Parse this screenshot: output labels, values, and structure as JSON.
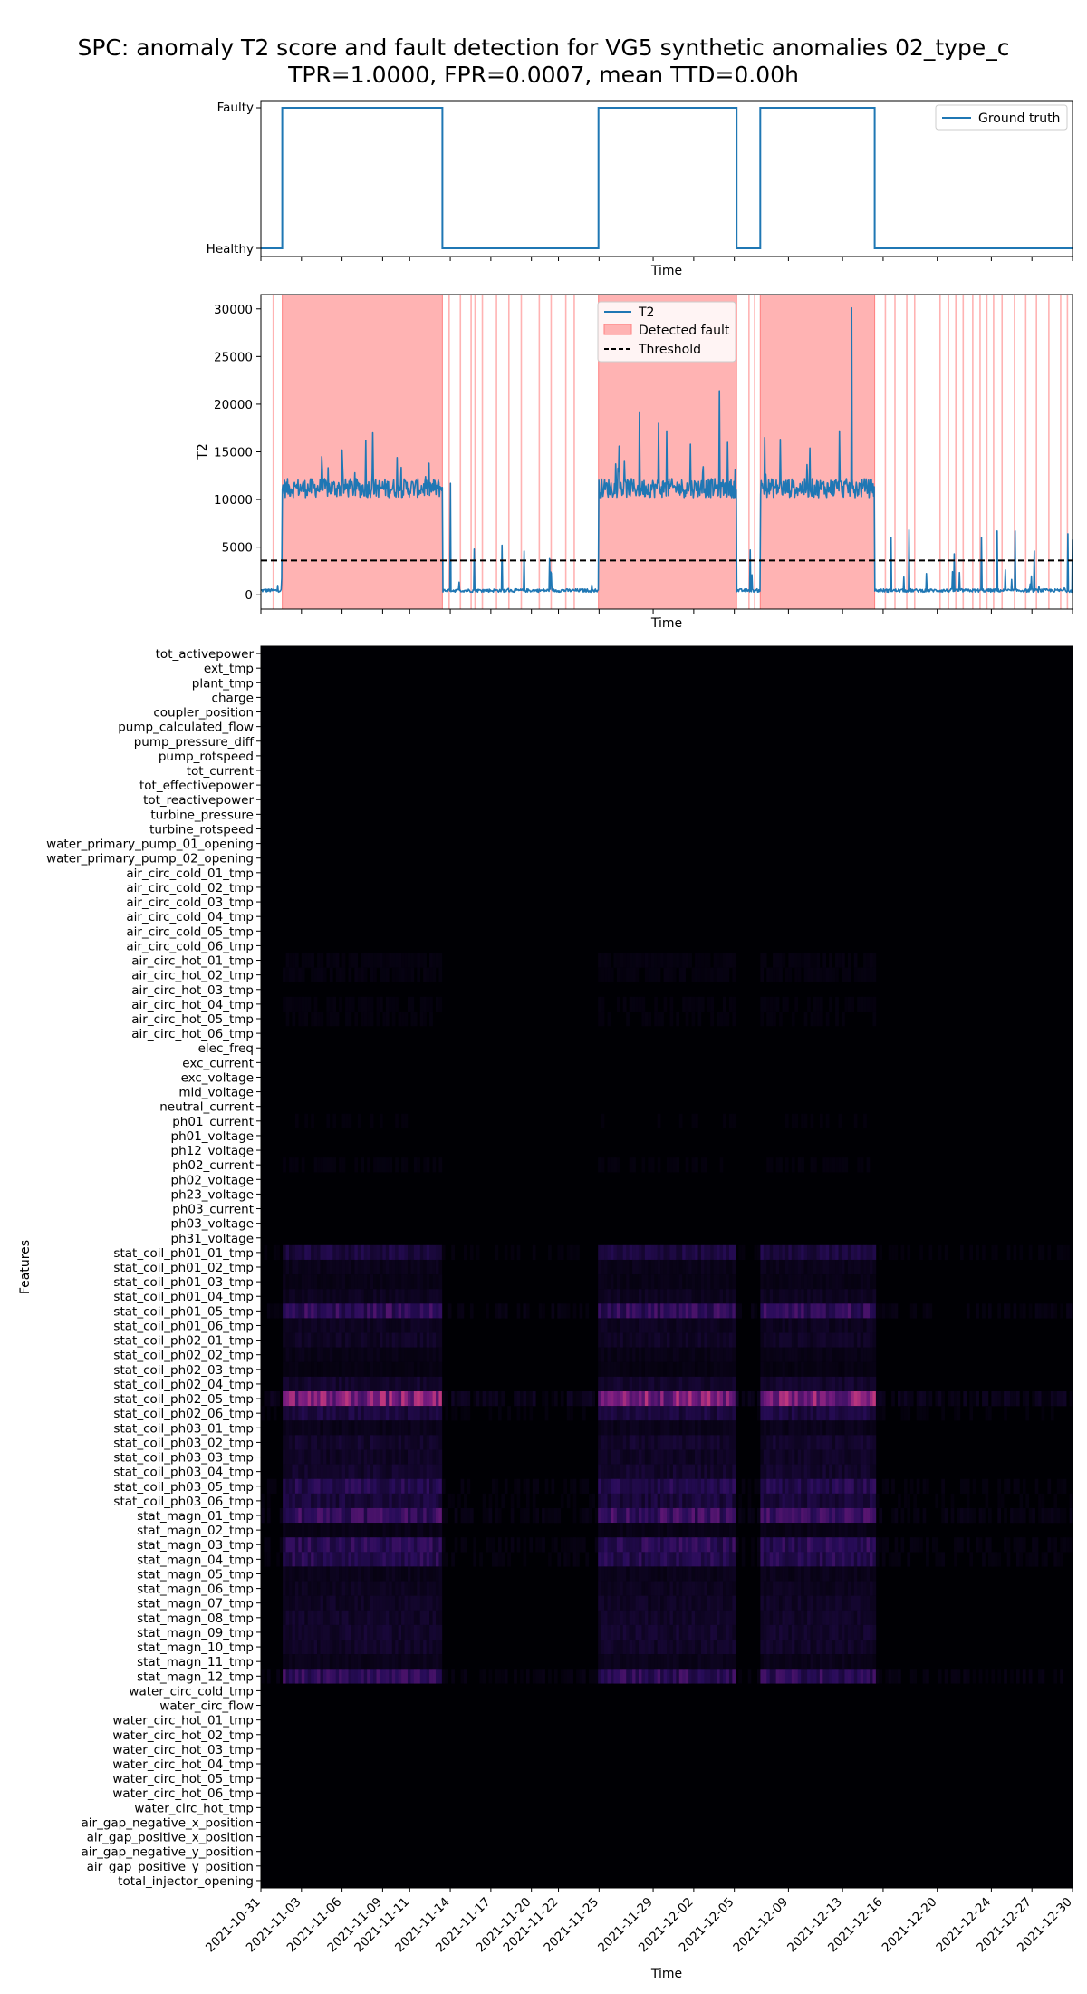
{
  "figure": {
    "title_line1": "SPC: anomaly T2 score and fault detection for VG5 synthetic anomalies 02_type_c",
    "title_line2": "TPR=1.0000, FPR=0.0007, mean TTD=0.00h"
  },
  "colors": {
    "series": "#1f77b4",
    "detected_fill": "#ffb3b3",
    "detected_edge": "#ff8080",
    "threshold": "#000000",
    "heatmap_base": "#000004",
    "heatmap_mid": "#3b0f70",
    "heatmap_high": "#b73779"
  },
  "chart_data": [
    {
      "type": "line",
      "xlabel": "Time",
      "ylabel": "",
      "xlim": [
        "2021-10-31",
        "2021-12-30"
      ],
      "yticks": [
        "Healthy",
        "Faulty"
      ],
      "legend": {
        "location": "top-right",
        "entries": [
          "Ground truth"
        ]
      },
      "series": [
        {
          "name": "Ground truth",
          "points": [
            [
              "2021-10-31",
              "Healthy"
            ],
            [
              "2021-11-01 14:00",
              "Healthy"
            ],
            [
              "2021-11-01 14:00",
              "Faulty"
            ],
            [
              "2021-11-13 10:00",
              "Faulty"
            ],
            [
              "2021-11-13 10:00",
              "Healthy"
            ],
            [
              "2021-11-24 23:00",
              "Healthy"
            ],
            [
              "2021-11-24 23:00",
              "Faulty"
            ],
            [
              "2021-12-05 04:00",
              "Faulty"
            ],
            [
              "2021-12-05 04:00",
              "Healthy"
            ],
            [
              "2021-12-06 22:00",
              "Healthy"
            ],
            [
              "2021-12-06 22:00",
              "Faulty"
            ],
            [
              "2021-12-15 09:00",
              "Faulty"
            ],
            [
              "2021-12-15 09:00",
              "Healthy"
            ],
            [
              "2021-12-30",
              "Healthy"
            ]
          ]
        }
      ]
    },
    {
      "type": "line",
      "xlabel": "Time",
      "ylabel": "T2",
      "xlim": [
        "2021-10-31",
        "2021-12-30"
      ],
      "ylim": [
        -1500,
        31500
      ],
      "yticks": [
        0,
        5000,
        10000,
        15000,
        20000,
        25000,
        30000
      ],
      "legend": {
        "location": "top-center",
        "entries": [
          "T2",
          "Detected fault",
          "Threshold"
        ]
      },
      "threshold": 3600,
      "fault_regions": [
        [
          "2021-11-01 14:00",
          "2021-11-13 10:00"
        ],
        [
          "2021-11-24 23:00",
          "2021-12-05 04:00"
        ],
        [
          "2021-12-06 22:00",
          "2021-12-15 09:00"
        ]
      ],
      "isolated_detections": [
        "2021-10-31 22:00",
        "2021-11-13 22:00",
        "2021-11-14 18:00",
        "2021-11-15 13:00",
        "2021-11-15 20:00",
        "2021-11-16 09:00",
        "2021-11-17 10:00",
        "2021-11-18 08:00",
        "2021-11-19 06:00",
        "2021-11-20 14:00",
        "2021-11-21 11:00",
        "2021-11-22 13:00",
        "2021-11-23 04:00",
        "2021-12-06 02:00",
        "2021-12-06 12:00",
        "2021-12-16 04:00",
        "2021-12-16 21:00",
        "2021-12-17 18:00",
        "2021-12-18 08:00",
        "2021-12-20 05:00",
        "2021-12-20 20:00",
        "2021-12-21 09:00",
        "2021-12-21 22:00",
        "2021-12-22 15:00",
        "2021-12-23 04:00",
        "2021-12-23 16:00",
        "2021-12-24 04:00",
        "2021-12-24 19:00",
        "2021-12-25 17:00",
        "2021-12-26 13:00",
        "2021-12-27 08:00",
        "2021-12-28 06:00",
        "2021-12-29 03:00",
        "2021-12-29 15:00"
      ],
      "series": [
        {
          "name": "T2",
          "baseline_level": 450,
          "fault_level": 11200,
          "fault_band": 2000,
          "spikes": [
            [
              "2021-11-04 12:00",
              14500
            ],
            [
              "2021-11-06 00:00",
              15200
            ],
            [
              "2021-11-07 18:00",
              16200
            ],
            [
              "2021-11-08 06:00",
              17000
            ],
            [
              "2021-11-10 02:00",
              14400
            ],
            [
              "2021-11-12 10:00",
              13800
            ],
            [
              "2021-11-14 00:00",
              11700
            ],
            [
              "2021-11-15 19:00",
              4800
            ],
            [
              "2021-11-17 20:00",
              5200
            ],
            [
              "2021-11-19 11:00",
              4600
            ],
            [
              "2021-11-21 08:00",
              3800
            ],
            [
              "2021-11-26 12:00",
              15600
            ],
            [
              "2021-11-28 00:00",
              19100
            ],
            [
              "2021-11-29 10:00",
              18000
            ],
            [
              "2021-11-30 00:00",
              17200
            ],
            [
              "2021-12-01 18:00",
              15800
            ],
            [
              "2021-12-03 22:00",
              21400
            ],
            [
              "2021-12-04 12:00",
              16000
            ],
            [
              "2021-12-06 04:00",
              4700
            ],
            [
              "2021-12-07 06:00",
              16500
            ],
            [
              "2021-12-08 10:00",
              16300
            ],
            [
              "2021-12-10 14:00",
              15400
            ],
            [
              "2021-12-12 18:00",
              17200
            ],
            [
              "2021-12-13 16:00",
              30100
            ],
            [
              "2021-12-16 14:00",
              6000
            ],
            [
              "2021-12-17 22:00",
              6800
            ],
            [
              "2021-12-21 06:00",
              4300
            ],
            [
              "2021-12-23 06:00",
              6000
            ],
            [
              "2021-12-24 10:00",
              6700
            ],
            [
              "2021-12-25 18:00",
              6700
            ],
            [
              "2021-12-27 04:00",
              4600
            ],
            [
              "2021-12-29 16:00",
              6400
            ],
            [
              "2021-12-30 00:00",
              5800
            ]
          ]
        }
      ]
    },
    {
      "type": "heatmap",
      "xlabel": "Time",
      "ylabel": "Features",
      "xlim": [
        "2021-10-31",
        "2021-12-30"
      ],
      "xticks": [
        "2021-10-31",
        "2021-11-03",
        "2021-11-06",
        "2021-11-09",
        "2021-11-11",
        "2021-11-14",
        "2021-11-17",
        "2021-11-20",
        "2021-11-22",
        "2021-11-25",
        "2021-11-29",
        "2021-12-02",
        "2021-12-05",
        "2021-12-09",
        "2021-12-13",
        "2021-12-16",
        "2021-12-20",
        "2021-12-24",
        "2021-12-27",
        "2021-12-30"
      ],
      "rows": [
        "tot_activepower",
        "ext_tmp",
        "plant_tmp",
        "charge",
        "coupler_position",
        "pump_calculated_flow",
        "pump_pressure_diff",
        "pump_rotspeed",
        "tot_current",
        "tot_effectivepower",
        "tot_reactivepower",
        "turbine_pressure",
        "turbine_rotspeed",
        "water_primary_pump_01_opening",
        "water_primary_pump_02_opening",
        "air_circ_cold_01_tmp",
        "air_circ_cold_02_tmp",
        "air_circ_cold_03_tmp",
        "air_circ_cold_04_tmp",
        "air_circ_cold_05_tmp",
        "air_circ_cold_06_tmp",
        "air_circ_hot_01_tmp",
        "air_circ_hot_02_tmp",
        "air_circ_hot_03_tmp",
        "air_circ_hot_04_tmp",
        "air_circ_hot_05_tmp",
        "air_circ_hot_06_tmp",
        "elec_freq",
        "exc_current",
        "exc_voltage",
        "mid_voltage",
        "neutral_current",
        "ph01_current",
        "ph01_voltage",
        "ph12_voltage",
        "ph02_current",
        "ph02_voltage",
        "ph23_voltage",
        "ph03_current",
        "ph03_voltage",
        "ph31_voltage",
        "stat_coil_ph01_01_tmp",
        "stat_coil_ph01_02_tmp",
        "stat_coil_ph01_03_tmp",
        "stat_coil_ph01_04_tmp",
        "stat_coil_ph01_05_tmp",
        "stat_coil_ph01_06_tmp",
        "stat_coil_ph02_01_tmp",
        "stat_coil_ph02_02_tmp",
        "stat_coil_ph02_03_tmp",
        "stat_coil_ph02_04_tmp",
        "stat_coil_ph02_05_tmp",
        "stat_coil_ph02_06_tmp",
        "stat_coil_ph03_01_tmp",
        "stat_coil_ph03_02_tmp",
        "stat_coil_ph03_03_tmp",
        "stat_coil_ph03_04_tmp",
        "stat_coil_ph03_05_tmp",
        "stat_coil_ph03_06_tmp",
        "stat_magn_01_tmp",
        "stat_magn_02_tmp",
        "stat_magn_03_tmp",
        "stat_magn_04_tmp",
        "stat_magn_05_tmp",
        "stat_magn_06_tmp",
        "stat_magn_07_tmp",
        "stat_magn_08_tmp",
        "stat_magn_09_tmp",
        "stat_magn_10_tmp",
        "stat_magn_11_tmp",
        "stat_magn_12_tmp",
        "water_circ_cold_tmp",
        "water_circ_flow",
        "water_circ_hot_01_tmp",
        "water_circ_hot_02_tmp",
        "water_circ_hot_03_tmp",
        "water_circ_hot_04_tmp",
        "water_circ_hot_05_tmp",
        "water_circ_hot_06_tmp",
        "water_circ_hot_tmp",
        "air_gap_negative_x_position",
        "air_gap_positive_x_position",
        "air_gap_negative_y_position",
        "air_gap_positive_y_position",
        "total_injector_opening"
      ],
      "row_intensity": {
        "stat_coil_ph01_01_tmp": 0.32,
        "stat_coil_ph01_02_tmp": 0.12,
        "stat_coil_ph01_03_tmp": 0.1,
        "stat_coil_ph01_04_tmp": 0.15,
        "stat_coil_ph01_05_tmp": 0.5,
        "stat_coil_ph01_06_tmp": 0.15,
        "stat_coil_ph02_01_tmp": 0.18,
        "stat_coil_ph02_02_tmp": 0.1,
        "stat_coil_ph02_03_tmp": 0.08,
        "stat_coil_ph02_04_tmp": 0.22,
        "stat_coil_ph02_05_tmp": 0.9,
        "stat_coil_ph02_06_tmp": 0.32,
        "stat_coil_ph03_01_tmp": 0.12,
        "stat_coil_ph03_02_tmp": 0.22,
        "stat_coil_ph03_03_tmp": 0.18,
        "stat_coil_ph03_04_tmp": 0.22,
        "stat_coil_ph03_05_tmp": 0.4,
        "stat_coil_ph03_06_tmp": 0.3,
        "stat_magn_01_tmp": 0.55,
        "stat_magn_02_tmp": 0.1,
        "stat_magn_03_tmp": 0.45,
        "stat_magn_04_tmp": 0.42,
        "stat_magn_05_tmp": 0.12,
        "stat_magn_06_tmp": 0.15,
        "stat_magn_07_tmp": 0.18,
        "stat_magn_08_tmp": 0.2,
        "stat_magn_09_tmp": 0.22,
        "stat_magn_10_tmp": 0.2,
        "stat_magn_11_tmp": 0.12,
        "stat_magn_12_tmp": 0.48,
        "air_circ_hot_01_tmp": 0.06,
        "air_circ_hot_02_tmp": 0.06,
        "air_circ_hot_04_tmp": 0.05,
        "air_circ_hot_05_tmp": 0.05,
        "ph02_current": 0.05,
        "ph01_current": 0.04
      }
    }
  ]
}
